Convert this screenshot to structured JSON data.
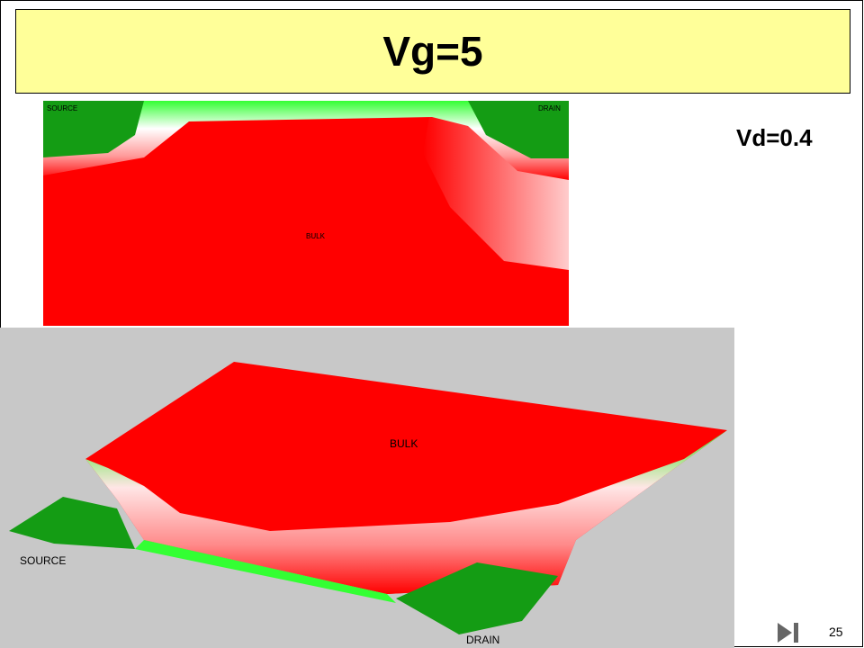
{
  "header": {
    "title": "Vg=5"
  },
  "side_label": "Vd=0.4",
  "top_image": {
    "source": "SOURCE",
    "drain": "DRAIN",
    "bulk": "BULK"
  },
  "bottom_image": {
    "bulk": "BULK",
    "source": "SOURCE",
    "drain": "DRAIN"
  },
  "page_number": "25"
}
